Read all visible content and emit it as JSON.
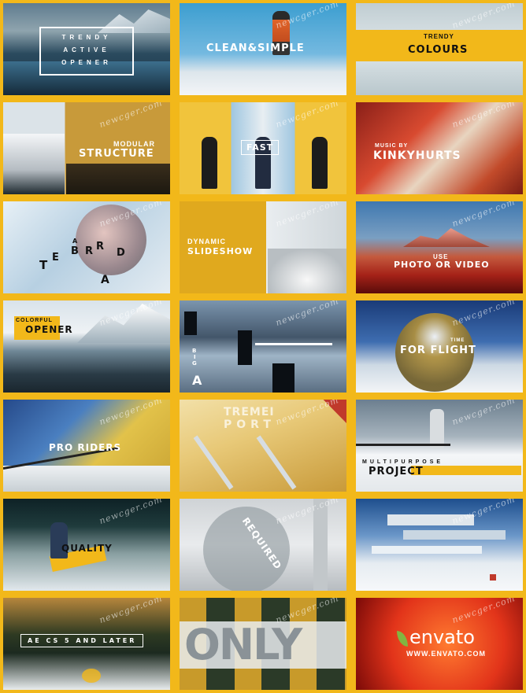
{
  "watermark": "newcger.com",
  "tiles": [
    {
      "id": "trendy-active-opener",
      "lines": [
        "TRENDY",
        "ACTIVE",
        "OPENER"
      ]
    },
    {
      "id": "clean-simple",
      "text": "CLEAN&SIMPLE"
    },
    {
      "id": "trendy-colours",
      "small": "TRENDY",
      "text": "COLOURS"
    },
    {
      "id": "modular-structure",
      "small": "MODULAR",
      "text": "STRUCTURE"
    },
    {
      "id": "fast",
      "text": "FAST"
    },
    {
      "id": "music-by",
      "small": "MUSIC BY",
      "text": "KINKYHURTS"
    },
    {
      "id": "tebarrd",
      "letters": [
        "T",
        "E",
        "B",
        "A",
        "R",
        "R",
        "D",
        "A"
      ]
    },
    {
      "id": "dynamic-slideshow",
      "small": "DYNAMIC",
      "text": "SLIDESHOW"
    },
    {
      "id": "photo-or-video",
      "small": "USE",
      "text": "PHOTO OR VIDEO"
    },
    {
      "id": "colorful-opener",
      "small": "COLORFUL",
      "text": "OPENER"
    },
    {
      "id": "glitch",
      "letters": [
        "B",
        "I",
        "G",
        "A"
      ]
    },
    {
      "id": "for-flight",
      "small": "TIME",
      "text": "FOR FLIGHT"
    },
    {
      "id": "pro-riders",
      "text": "PRO RIDERS"
    },
    {
      "id": "tremendous",
      "line1": "TREMEI",
      "line2": "PORT"
    },
    {
      "id": "multipurpose-project",
      "small": "MULTIPURPOSE",
      "text": "PROJECT"
    },
    {
      "id": "quality",
      "text": "QUALITY"
    },
    {
      "id": "required",
      "text": "REQUIRED"
    },
    {
      "id": "glitch-ski",
      "text": ""
    },
    {
      "id": "ae-cs5",
      "text": "AE CS 5 AND LATER"
    },
    {
      "id": "only",
      "text": "ONLY"
    },
    {
      "id": "envato",
      "brand": "envato",
      "url": "WWW.ENVATO.COM"
    }
  ],
  "colors": {
    "frame": "#f2b81a",
    "envato_green": "#82b541"
  }
}
